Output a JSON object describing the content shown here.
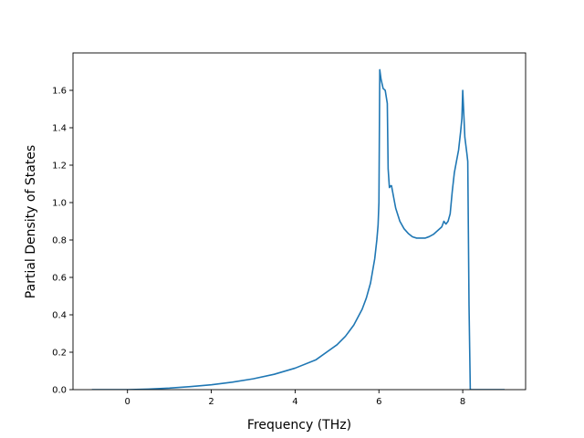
{
  "chart_data": {
    "type": "line",
    "title": "",
    "xlabel": "Frequency (THz)",
    "ylabel": "Partial Density of States",
    "xlim": [
      -1.3,
      9.5
    ],
    "ylim": [
      0.0,
      1.8
    ],
    "xticks": [
      0,
      2,
      4,
      6,
      8
    ],
    "xtick_labels": [
      "0",
      "2",
      "4",
      "6",
      "8"
    ],
    "yticks": [
      0.0,
      0.2,
      0.4,
      0.6,
      0.8,
      1.0,
      1.2,
      1.4,
      1.6
    ],
    "ytick_labels": [
      "0.0",
      "0.2",
      "0.4",
      "0.6",
      "0.8",
      "1.0",
      "1.2",
      "1.4",
      "1.6"
    ],
    "grid": false,
    "series": [
      {
        "color": "#1f77b4",
        "x": [
          -0.85,
          0.0,
          0.5,
          1.0,
          1.5,
          2.0,
          2.5,
          3.0,
          3.5,
          4.0,
          4.5,
          5.0,
          5.2,
          5.4,
          5.6,
          5.7,
          5.8,
          5.9,
          5.95,
          5.98,
          6.0,
          6.02,
          6.05,
          6.1,
          6.15,
          6.2,
          6.22,
          6.25,
          6.28,
          6.3,
          6.35,
          6.4,
          6.5,
          6.6,
          6.7,
          6.8,
          6.9,
          7.0,
          7.1,
          7.2,
          7.3,
          7.4,
          7.5,
          7.55,
          7.6,
          7.65,
          7.7,
          7.75,
          7.8,
          7.85,
          7.9,
          7.95,
          7.98,
          8.0,
          8.02,
          8.05,
          8.1,
          8.12,
          8.15,
          8.18,
          8.2,
          8.5,
          9.0
        ],
        "y": [
          0.0,
          0.0,
          0.003,
          0.008,
          0.016,
          0.026,
          0.04,
          0.058,
          0.082,
          0.115,
          0.16,
          0.24,
          0.285,
          0.345,
          0.43,
          0.49,
          0.57,
          0.7,
          0.8,
          0.88,
          1.0,
          1.71,
          1.66,
          1.61,
          1.6,
          1.53,
          1.18,
          1.08,
          1.09,
          1.09,
          1.03,
          0.97,
          0.9,
          0.86,
          0.835,
          0.817,
          0.81,
          0.81,
          0.81,
          0.818,
          0.83,
          0.85,
          0.87,
          0.9,
          0.885,
          0.9,
          0.94,
          1.06,
          1.16,
          1.22,
          1.28,
          1.38,
          1.45,
          1.6,
          1.5,
          1.35,
          1.26,
          1.22,
          0.45,
          0.0,
          0.0,
          0.0,
          0.0
        ]
      }
    ]
  }
}
